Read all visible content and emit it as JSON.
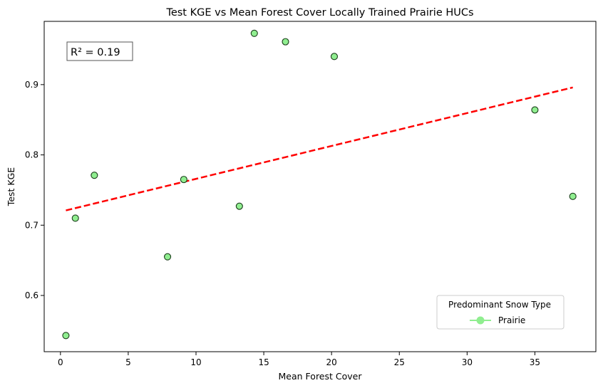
{
  "chart_data": {
    "type": "scatter",
    "title": "Test KGE vs Mean Forest Cover Locally Trained Prairie HUCs",
    "xlabel": "Mean Forest Cover",
    "ylabel": "Test KGE",
    "xlim": [
      -1.2,
      39.5
    ],
    "ylim": [
      0.52,
      0.99
    ],
    "xticks": [
      0,
      5,
      10,
      15,
      20,
      25,
      30,
      35
    ],
    "yticks": [
      0.6,
      0.7,
      0.8,
      0.9
    ],
    "xtick_labels": [
      "0",
      "5",
      "10",
      "15",
      "20",
      "25",
      "30",
      "35"
    ],
    "ytick_labels": [
      "0.6",
      "0.7",
      "0.8",
      "0.9"
    ],
    "grid": false,
    "series": [
      {
        "name": "Prairie",
        "color": "#90ee90",
        "edgecolor": "#1a3d1a",
        "points": [
          {
            "x": 0.4,
            "y": 0.543
          },
          {
            "x": 1.1,
            "y": 0.71
          },
          {
            "x": 2.5,
            "y": 0.771
          },
          {
            "x": 7.9,
            "y": 0.655
          },
          {
            "x": 9.1,
            "y": 0.765
          },
          {
            "x": 13.2,
            "y": 0.727
          },
          {
            "x": 14.3,
            "y": 0.973
          },
          {
            "x": 16.6,
            "y": 0.961
          },
          {
            "x": 20.2,
            "y": 0.94
          },
          {
            "x": 35.0,
            "y": 0.864
          },
          {
            "x": 37.8,
            "y": 0.741
          }
        ]
      }
    ],
    "trendline": {
      "color": "#ff0000",
      "style": "dashed",
      "x_start": 0.4,
      "y_start": 0.721,
      "x_end": 37.8,
      "y_end": 0.896
    },
    "annotation": {
      "text": "R² = 0.19",
      "color": "#ff0000",
      "placement": "top-left"
    },
    "legend": {
      "title": "Predominant Snow Type",
      "placement": "bottom-right",
      "entries": [
        "Prairie"
      ]
    }
  }
}
